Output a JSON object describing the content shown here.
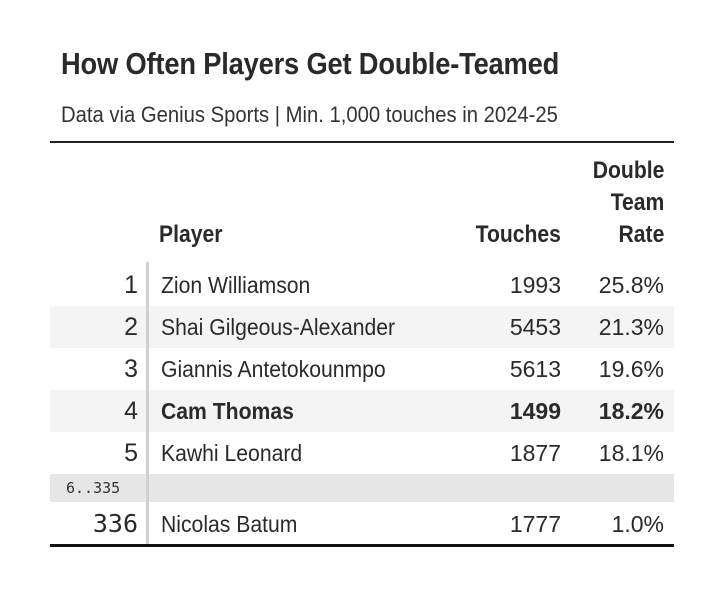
{
  "title": "How Often Players Get Double-Teamed",
  "subtitle": "Data via Genius Sports | Min. 1,000 touches in 2024-25",
  "headers": {
    "player": "Player",
    "touches": "Touches",
    "rate_line1": "Double",
    "rate_line2": "Team",
    "rate_line3": "Rate"
  },
  "rows": [
    {
      "rank": "1",
      "player": "Zion Williamson",
      "touches": "1993",
      "rate": "25.8%"
    },
    {
      "rank": "2",
      "player": "Shai Gilgeous-Alexander",
      "touches": "5453",
      "rate": "21.3%"
    },
    {
      "rank": "3",
      "player": "Giannis Antetokounmpo",
      "touches": "5613",
      "rate": "19.6%"
    },
    {
      "rank": "4",
      "player": "Cam Thomas",
      "touches": "1499",
      "rate": "18.2%"
    },
    {
      "rank": "5",
      "player": "Kawhi Leonard",
      "touches": "1877",
      "rate": "18.1%"
    }
  ],
  "gap_label": "6..335",
  "last_row": {
    "rank": "336",
    "player": "Nicolas Batum",
    "touches": "1777",
    "rate": "1.0%"
  }
}
